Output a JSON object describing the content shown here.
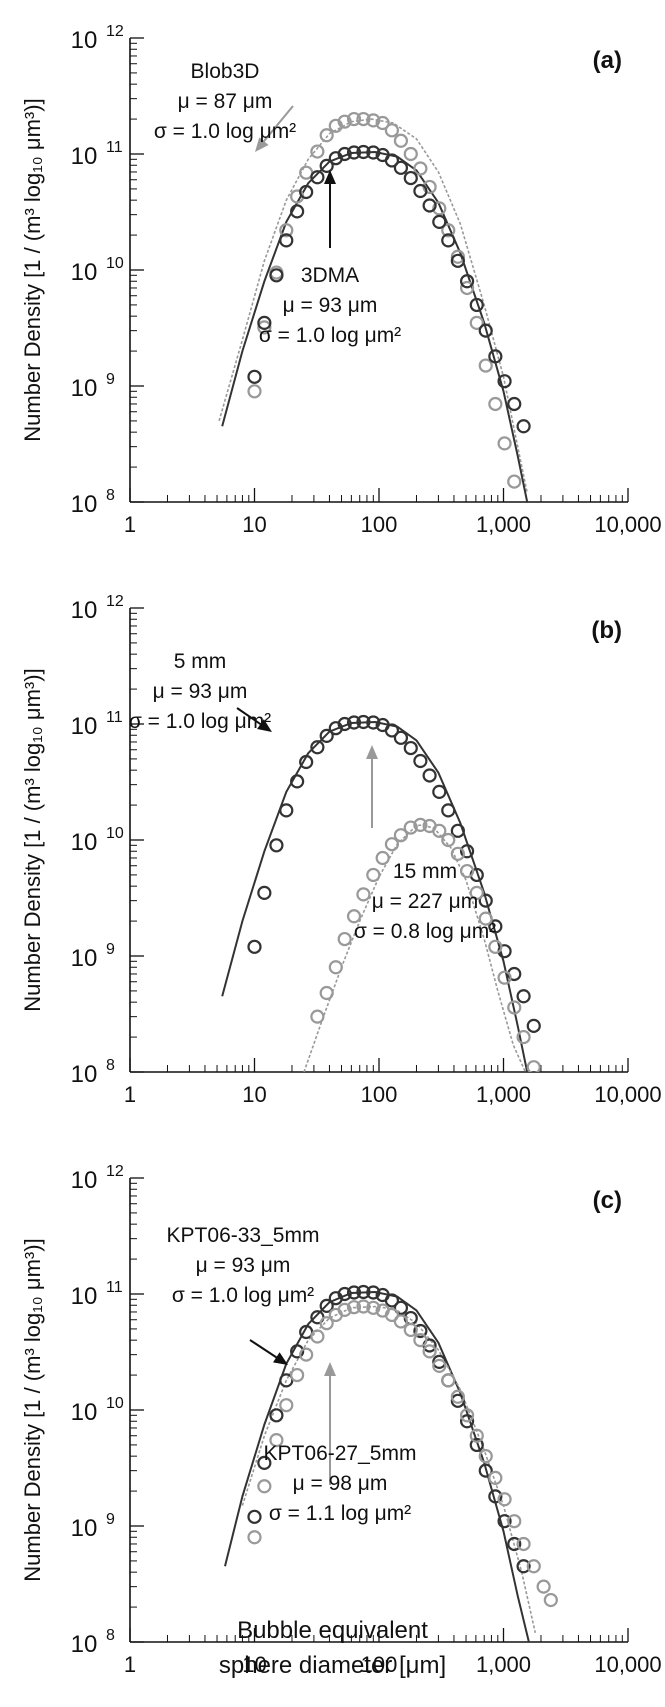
{
  "figure": {
    "ylabel": "Number Density [1 / (m³ log₁₀ μm³)]",
    "xlabel_line1": "Bubble equivalent",
    "xlabel_line2": "sphere diameter [μm]",
    "x_tick_labels": [
      "1",
      "10",
      "100",
      "1,000",
      "10,000"
    ],
    "y_tick_labels": [
      "10",
      "10",
      "10",
      "10",
      "10"
    ],
    "y_tick_exponents": [
      "8",
      "9",
      "10",
      "11",
      "12"
    ]
  },
  "chart_data": [
    {
      "type": "scatter",
      "panel_label": "(a)",
      "xscale": "log",
      "yscale": "log",
      "xlim": [
        1,
        10000
      ],
      "ylim": [
        100000000.0,
        1000000000000.0
      ],
      "series": [
        {
          "name": "Blob3D",
          "color": "#999999",
          "points": {
            "x": [
              10,
              12,
              15,
              18,
              22,
              26,
              32,
              38,
              45,
              53,
              63,
              75,
              90,
              107,
              127,
              150,
              180,
              215,
              255,
              305,
              360,
              430,
              510,
              610,
              720,
              860,
              1020,
              1220
            ],
            "y": [
              900000000.0,
              3200000000.0,
              9500000000.0,
              22000000000.0,
              43000000000.0,
              69000000000.0,
              105000000000.0,
              145000000000.0,
              175000000000.0,
              190000000000.0,
              200000000000.0,
              200000000000.0,
              195000000000.0,
              185000000000.0,
              160000000000.0,
              130000000000.0,
              100000000000.0,
              75000000000.0,
              52000000000.0,
              34000000000.0,
              22000000000.0,
              13000000000.0,
              7000000000.0,
              3500000000.0,
              1500000000.0,
              700000000.0,
              320000000.0,
              150000000.0
            ]
          },
          "fit": {
            "x": [
              5.2,
              8,
              12,
              18,
              27,
              40,
              60,
              87,
              130,
              200,
              300,
              450,
              700,
              1000,
              1300,
              1550
            ],
            "y": [
              500000000.0,
              2500000000.0,
              12000000000.0,
              40000000000.0,
              90000000000.0,
              150000000000.0,
              190000000000.0,
              200000000000.0,
              185000000000.0,
              135000000000.0,
              70000000000.0,
              25000000000.0,
              5000000000.0,
              1200000000.0,
              300000000.0,
              120000000.0
            ]
          }
        },
        {
          "name": "3DMA",
          "color": "#333333",
          "points": {
            "x": [
              10,
              12,
              15,
              18,
              22,
              26,
              32,
              38,
              45,
              53,
              63,
              75,
              90,
              107,
              127,
              150,
              180,
              215,
              255,
              305,
              360,
              430,
              510,
              610,
              720,
              860,
              1020,
              1220,
              1450
            ],
            "y": [
              1200000000.0,
              3500000000.0,
              9000000000.0,
              18000000000.0,
              32000000000.0,
              47000000000.0,
              63000000000.0,
              79000000000.0,
              92000000000.0,
              100000000000.0,
              103000000000.0,
              104000000000.0,
              103000000000.0,
              98000000000.0,
              88000000000.0,
              76000000000.0,
              62000000000.0,
              48000000000.0,
              36000000000.0,
              26000000000.0,
              18000000000.0,
              12000000000.0,
              8000000000.0,
              5000000000.0,
              3000000000.0,
              1800000000.0,
              1100000000.0,
              700000000.0,
              450000000.0
            ]
          },
          "fit": {
            "x": [
              5.5,
              8,
              12,
              18,
              27,
              40,
              60,
              93,
              140,
              200,
              300,
              450,
              700,
              1000,
              1300,
              1550
            ],
            "y": [
              450000000.0,
              2000000000.0,
              8000000000.0,
              26000000000.0,
              56000000000.0,
              86000000000.0,
              102000000000.0,
              104000000000.0,
              95000000000.0,
              72000000000.0,
              38000000000.0,
              14000000000.0,
              3500000000.0,
              900000000.0,
              250000000.0,
              100000000.0
            ]
          }
        }
      ],
      "annotations": [
        {
          "lines": [
            "Blob3D",
            "μ = 87 μm",
            "σ = 1.0 log μm²"
          ]
        },
        {
          "lines": [
            "3DMA",
            "μ = 93 μm",
            "σ = 1.0 log μm²"
          ]
        }
      ]
    },
    {
      "type": "scatter",
      "panel_label": "(b)",
      "xscale": "log",
      "yscale": "log",
      "xlim": [
        1,
        10000
      ],
      "ylim": [
        100000000.0,
        1000000000000.0
      ],
      "series": [
        {
          "name": "5 mm",
          "color": "#333333",
          "points": {
            "x": [
              10,
              12,
              15,
              18,
              22,
              26,
              32,
              38,
              45,
              53,
              63,
              75,
              90,
              107,
              127,
              150,
              180,
              215,
              255,
              305,
              360,
              430,
              510,
              610,
              720,
              860,
              1020,
              1220,
              1450,
              1750
            ],
            "y": [
              1200000000.0,
              3500000000.0,
              9000000000.0,
              18000000000.0,
              32000000000.0,
              47000000000.0,
              63000000000.0,
              79000000000.0,
              92000000000.0,
              100000000000.0,
              103000000000.0,
              104000000000.0,
              103000000000.0,
              98000000000.0,
              88000000000.0,
              76000000000.0,
              62000000000.0,
              48000000000.0,
              36000000000.0,
              26000000000.0,
              18000000000.0,
              12000000000.0,
              8000000000.0,
              5000000000.0,
              3000000000.0,
              1800000000.0,
              1100000000.0,
              700000000.0,
              450000000.0,
              250000000.0
            ]
          },
          "fit": {
            "x": [
              5.5,
              8,
              12,
              18,
              27,
              40,
              60,
              93,
              140,
              200,
              300,
              450,
              700,
              1000,
              1300,
              1550
            ],
            "y": [
              450000000.0,
              2000000000.0,
              8000000000.0,
              26000000000.0,
              56000000000.0,
              86000000000.0,
              102000000000.0,
              104000000000.0,
              95000000000.0,
              72000000000.0,
              38000000000.0,
              14000000000.0,
              3500000000.0,
              900000000.0,
              250000000.0,
              100000000.0
            ]
          }
        },
        {
          "name": "15 mm",
          "color": "#999999",
          "points": {
            "x": [
              32,
              38,
              45,
              53,
              63,
              75,
              90,
              107,
              127,
              150,
              180,
              215,
              255,
              305,
              360,
              430,
              510,
              610,
              720,
              860,
              1020,
              1220,
              1450,
              1750
            ],
            "y": [
              300000000.0,
              480000000.0,
              800000000.0,
              1400000000.0,
              2200000000.0,
              3400000000.0,
              5000000000.0,
              7000000000.0,
              9200000000.0,
              11000000000.0,
              12800000000.0,
              13500000000.0,
              13200000000.0,
              12000000000.0,
              10000000000.0,
              7600000000.0,
              5400000000.0,
              3500000000.0,
              2100000000.0,
              1200000000.0,
              650000000.0,
              360000000.0,
              200000000.0,
              110000000.0
            ]
          },
          "fit": {
            "x": [
              25,
              35,
              50,
              70,
              100,
              140,
              200,
              227,
              280,
              380,
              500,
              700,
              900,
              1200,
              1500
            ],
            "y": [
              100000000.0,
              280000000.0,
              800000000.0,
              2000000000.0,
              4800000000.0,
              9200000000.0,
              13300000000.0,
              13500000000.0,
              12500000000.0,
              8500000000.0,
              4500000000.0,
              1400000000.0,
              500000000.0,
              170000000.0,
              100000000.0
            ]
          }
        }
      ],
      "annotations": [
        {
          "lines": [
            "5 mm",
            "μ = 93 μm",
            "σ = 1.0 log μm²"
          ]
        },
        {
          "lines": [
            "15 mm",
            "μ = 227 μm",
            "σ = 0.8 log μm²"
          ]
        }
      ]
    },
    {
      "type": "scatter",
      "panel_label": "(c)",
      "xscale": "log",
      "yscale": "log",
      "xlim": [
        1,
        10000
      ],
      "ylim": [
        100000000.0,
        1000000000000.0
      ],
      "series": [
        {
          "name": "KPT06-33_5mm",
          "color": "#333333",
          "points": {
            "x": [
              10,
              12,
              15,
              18,
              22,
              26,
              32,
              38,
              45,
              53,
              63,
              75,
              90,
              107,
              127,
              150,
              180,
              215,
              255,
              305,
              360,
              430,
              510,
              610,
              720,
              860,
              1020,
              1220,
              1450
            ],
            "y": [
              1200000000.0,
              3500000000.0,
              9000000000.0,
              18000000000.0,
              32000000000.0,
              47000000000.0,
              63000000000.0,
              79000000000.0,
              92000000000.0,
              100000000000.0,
              103000000000.0,
              104000000000.0,
              103000000000.0,
              98000000000.0,
              88000000000.0,
              76000000000.0,
              62000000000.0,
              48000000000.0,
              36000000000.0,
              26000000000.0,
              18000000000.0,
              12000000000.0,
              8000000000.0,
              5000000000.0,
              3000000000.0,
              1800000000.0,
              1100000000.0,
              700000000.0,
              450000000.0
            ]
          },
          "fit": {
            "x": [
              5.8,
              8,
              12,
              18,
              27,
              40,
              60,
              93,
              140,
              200,
              300,
              450,
              700,
              1000,
              1300,
              1600
            ],
            "y": [
              450000000.0,
              1800000000.0,
              7500000000.0,
              25000000000.0,
              55000000000.0,
              85000000000.0,
              102000000000.0,
              104000000000.0,
              95000000000.0,
              72000000000.0,
              38000000000.0,
              14000000000.0,
              3500000000.0,
              900000000.0,
              250000000.0,
              100000000.0
            ]
          }
        },
        {
          "name": "KPT06-27_5mm",
          "color": "#999999",
          "points": {
            "x": [
              10,
              12,
              15,
              18,
              22,
              26,
              32,
              38,
              45,
              53,
              63,
              75,
              90,
              107,
              127,
              150,
              180,
              215,
              255,
              305,
              360,
              430,
              510,
              610,
              720,
              860,
              1020,
              1220,
              1450,
              1750,
              2100,
              2400
            ],
            "y": [
              800000000.0,
              2200000000.0,
              5500000000.0,
              11000000000.0,
              20000000000.0,
              30000000000.0,
              43000000000.0,
              56000000000.0,
              66000000000.0,
              73000000000.0,
              77000000000.0,
              78000000000.0,
              76000000000.0,
              72000000000.0,
              66000000000.0,
              58000000000.0,
              49000000000.0,
              40000000000.0,
              32000000000.0,
              24000000000.0,
              18000000000.0,
              13000000000.0,
              9000000000.0,
              6000000000.0,
              4000000000.0,
              2600000000.0,
              1700000000.0,
              1100000000.0,
              700000000.0,
              450000000.0,
              300000000.0,
              230000000.0
            ]
          },
          "fit": {
            "x": [
              8,
              12,
              18,
              27,
              40,
              60,
              98,
              140,
              200,
              300,
              450,
              700,
              1000,
              1400,
              1800
            ],
            "y": [
              1500000000.0,
              6000000000.0,
              18000000000.0,
              40000000000.0,
              62000000000.0,
              76000000000.0,
              78000000000.0,
              72000000000.0,
              56000000000.0,
              33000000000.0,
              15000000000.0,
              4500000000.0,
              1500000000.0,
              400000000.0,
              120000000.0
            ]
          }
        }
      ],
      "annotations": [
        {
          "lines": [
            "KPT06-33_5mm",
            "μ = 93 μm",
            "σ = 1.0 log μm²"
          ]
        },
        {
          "lines": [
            "KPT06-27_5mm",
            "μ = 98 μm",
            "σ = 1.1 log μm²"
          ]
        }
      ]
    }
  ]
}
